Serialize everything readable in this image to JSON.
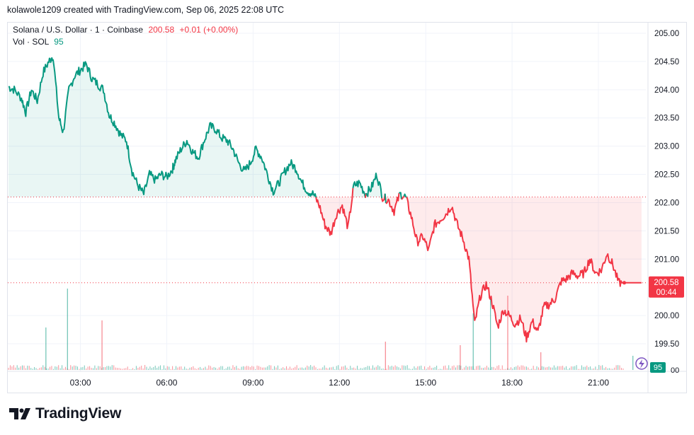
{
  "header": {
    "attribution": "kolawole1209 created with TradingView.com, Sep 06, 2025 22:08 UTC"
  },
  "legend": {
    "symbol": "Solana / U.S. Dollar · 1 · Coinbase",
    "last": "200.58",
    "change": "+0.01 (+0.00%)",
    "volume_label": "Vol · SOL",
    "volume_value": "95"
  },
  "price_axis": {
    "ticks": [
      "205.00",
      "204.50",
      "204.00",
      "203.50",
      "203.00",
      "202.50",
      "202.00",
      "201.50",
      "201.00",
      "200.00",
      "199.50"
    ],
    "current_price": "200.58",
    "countdown": "00:44",
    "volume_badge": "95",
    "volume_zero": "00"
  },
  "time_axis": {
    "ticks": [
      "03:00",
      "06:00",
      "09:00",
      "12:00",
      "15:00",
      "18:00",
      "21:00"
    ]
  },
  "brand": {
    "name": "TradingView"
  },
  "colors": {
    "up": "#089981",
    "down": "#f23645",
    "up_fill": "rgba(8,153,129,0.09)",
    "down_fill": "rgba(242,54,69,0.10)",
    "grid": "#f0f3fa",
    "text": "#131722"
  },
  "chart_data": {
    "type": "line",
    "title": "Solana / U.S. Dollar · 1 · Coinbase",
    "xlabel": "",
    "ylabel": "",
    "ylim": [
      199.0,
      205.3
    ],
    "x_ticks": [
      "03:00",
      "06:00",
      "09:00",
      "12:00",
      "15:00",
      "18:00",
      "21:00"
    ],
    "baseline": 202.1,
    "current": 200.58,
    "series": [
      {
        "x": [
          0.0,
          0.2,
          0.45,
          0.6,
          0.8,
          1.0,
          1.2,
          1.4,
          1.55,
          1.75,
          1.9,
          2.1,
          2.3,
          2.5,
          2.7,
          2.9,
          3.1,
          3.3,
          3.5,
          3.7,
          3.9,
          4.1,
          4.3,
          4.5,
          4.7,
          4.9,
          5.1,
          5.3,
          5.5,
          5.7,
          5.8,
          6.0,
          6.2,
          6.4,
          6.6,
          6.8,
          7.0,
          7.2,
          7.4,
          7.6,
          7.8,
          8.0,
          8.2,
          8.4,
          8.6,
          8.8,
          9.0,
          9.2,
          9.4,
          9.6,
          9.8,
          10.0,
          10.2,
          10.4,
          10.6,
          10.8,
          11.0,
          11.2,
          11.4,
          11.6,
          11.8,
          12.0,
          12.2,
          12.4,
          12.6,
          12.8,
          13.0,
          13.2,
          13.4,
          13.6,
          13.8,
          14.0,
          14.2,
          14.4,
          14.6,
          14.8,
          15.0,
          15.2,
          15.4,
          15.6,
          15.8,
          16.0,
          16.2,
          16.4,
          16.6,
          16.8,
          17.0,
          17.2,
          17.4,
          17.6,
          17.8,
          18.0,
          18.2,
          18.4,
          18.6,
          18.8,
          19.0,
          19.2,
          19.4,
          19.6,
          19.8,
          20.0,
          20.2,
          20.4,
          20.6,
          20.8,
          21.0,
          21.2,
          21.4,
          21.6,
          21.8,
          22.0
        ],
        "y": [
          204.05,
          204.0,
          203.85,
          203.6,
          204.0,
          203.8,
          204.3,
          204.5,
          204.6,
          203.5,
          203.25,
          204.0,
          204.25,
          204.35,
          204.45,
          204.2,
          204.1,
          204.0,
          203.55,
          203.4,
          203.2,
          203.1,
          202.55,
          202.3,
          202.15,
          202.5,
          202.4,
          202.5,
          202.45,
          202.6,
          202.75,
          202.95,
          203.1,
          202.9,
          202.8,
          203.1,
          203.35,
          203.3,
          203.15,
          203.1,
          202.95,
          202.7,
          202.55,
          202.7,
          202.95,
          202.8,
          202.5,
          202.2,
          202.35,
          202.55,
          202.7,
          202.6,
          202.35,
          202.2,
          202.15,
          201.95,
          201.6,
          201.45,
          201.8,
          201.95,
          201.55,
          202.3,
          202.35,
          202.15,
          202.25,
          202.5,
          202.1,
          202.05,
          201.85,
          202.15,
          202.1,
          201.75,
          201.3,
          201.4,
          201.15,
          201.6,
          201.7,
          201.8,
          201.95,
          201.6,
          201.35,
          201.0,
          199.85,
          200.35,
          200.55,
          200.25,
          199.8,
          200.1,
          200.0,
          199.85,
          199.95,
          199.6,
          199.9,
          199.7,
          200.15,
          200.2,
          200.3,
          200.6,
          200.65,
          200.75,
          200.7,
          200.75,
          201.0,
          200.75,
          200.8,
          201.1,
          200.9,
          200.58,
          200.58,
          200.58,
          200.58,
          200.58
        ]
      }
    ],
    "volume": {
      "spikes": [
        {
          "x": 1.3,
          "v": 60,
          "color": "up"
        },
        {
          "x": 2.05,
          "v": 115,
          "color": "up"
        },
        {
          "x": 3.25,
          "v": 70,
          "color": "down"
        },
        {
          "x": 13.1,
          "v": 40,
          "color": "down"
        },
        {
          "x": 15.7,
          "v": 35,
          "color": "down"
        },
        {
          "x": 16.15,
          "v": 80,
          "color": "up"
        },
        {
          "x": 16.75,
          "v": 100,
          "color": "up"
        },
        {
          "x": 17.35,
          "v": 105,
          "color": "down"
        },
        {
          "x": 18.5,
          "v": 25,
          "color": "down"
        },
        {
          "x": 21.7,
          "v": 20,
          "color": "up"
        }
      ]
    }
  }
}
